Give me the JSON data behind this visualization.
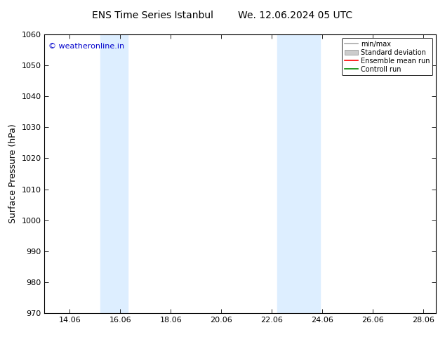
{
  "title_left": "ENS Time Series Istanbul",
  "title_right": "We. 12.06.2024 05 UTC",
  "ylabel": "Surface Pressure (hPa)",
  "ylim": [
    970,
    1060
  ],
  "yticks": [
    970,
    980,
    990,
    1000,
    1010,
    1020,
    1030,
    1040,
    1050,
    1060
  ],
  "xlim": [
    13.0,
    28.5
  ],
  "xtick_labels": [
    "14.06",
    "16.06",
    "18.06",
    "20.06",
    "22.06",
    "24.06",
    "26.06",
    "28.06"
  ],
  "xtick_positions": [
    14.0,
    16.0,
    18.0,
    20.0,
    22.0,
    24.0,
    26.0,
    28.0
  ],
  "shade_bands": [
    {
      "x_start": 15.2,
      "x_end": 16.3,
      "color": "#ddeeff"
    },
    {
      "x_start": 22.2,
      "x_end": 23.9,
      "color": "#ddeeff"
    }
  ],
  "watermark": "© weatheronline.in",
  "watermark_color": "#0000cc",
  "bg_color": "#ffffff",
  "legend_items": [
    {
      "label": "min/max",
      "color": "#aaaaaa",
      "type": "line"
    },
    {
      "label": "Standard deviation",
      "color": "#cccccc",
      "type": "box"
    },
    {
      "label": "Ensemble mean run",
      "color": "#ff0000",
      "type": "line"
    },
    {
      "label": "Controll run",
      "color": "#008800",
      "type": "line"
    }
  ],
  "title_fontsize": 10,
  "ylabel_fontsize": 9,
  "tick_fontsize": 8,
  "legend_fontsize": 7,
  "watermark_fontsize": 8
}
